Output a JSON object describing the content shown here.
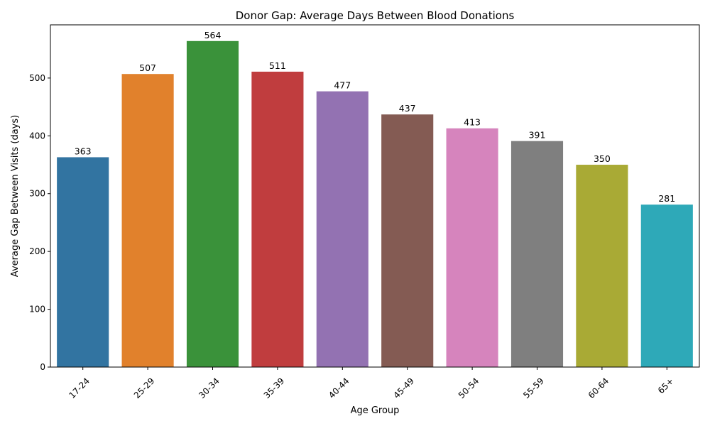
{
  "chart_data": {
    "type": "bar",
    "title": "Donor Gap: Average Days Between Blood Donations",
    "xlabel": "Age Group",
    "ylabel": "Average Gap Between Visits (days)",
    "categories": [
      "17-24",
      "25-29",
      "30-34",
      "35-39",
      "40-44",
      "45-49",
      "50-54",
      "55-59",
      "60-64",
      "65+"
    ],
    "values": [
      363,
      507,
      564,
      511,
      477,
      437,
      413,
      391,
      350,
      281
    ],
    "data_labels": [
      "363",
      "507",
      "564",
      "511",
      "477",
      "437",
      "413",
      "391",
      "350",
      "281"
    ],
    "colors": [
      "#3274a1",
      "#e1812c",
      "#3a923a",
      "#c03d3e",
      "#9372b2",
      "#845b53",
      "#d684bd",
      "#7f7f7f",
      "#a9aa35",
      "#2ea9b8"
    ],
    "ylim": [
      0,
      592
    ],
    "yticks": [
      0,
      100,
      200,
      300,
      400,
      500
    ],
    "ytick_labels": [
      "0",
      "100",
      "200",
      "300",
      "400",
      "500"
    ],
    "grid": false,
    "legend": "none"
  }
}
